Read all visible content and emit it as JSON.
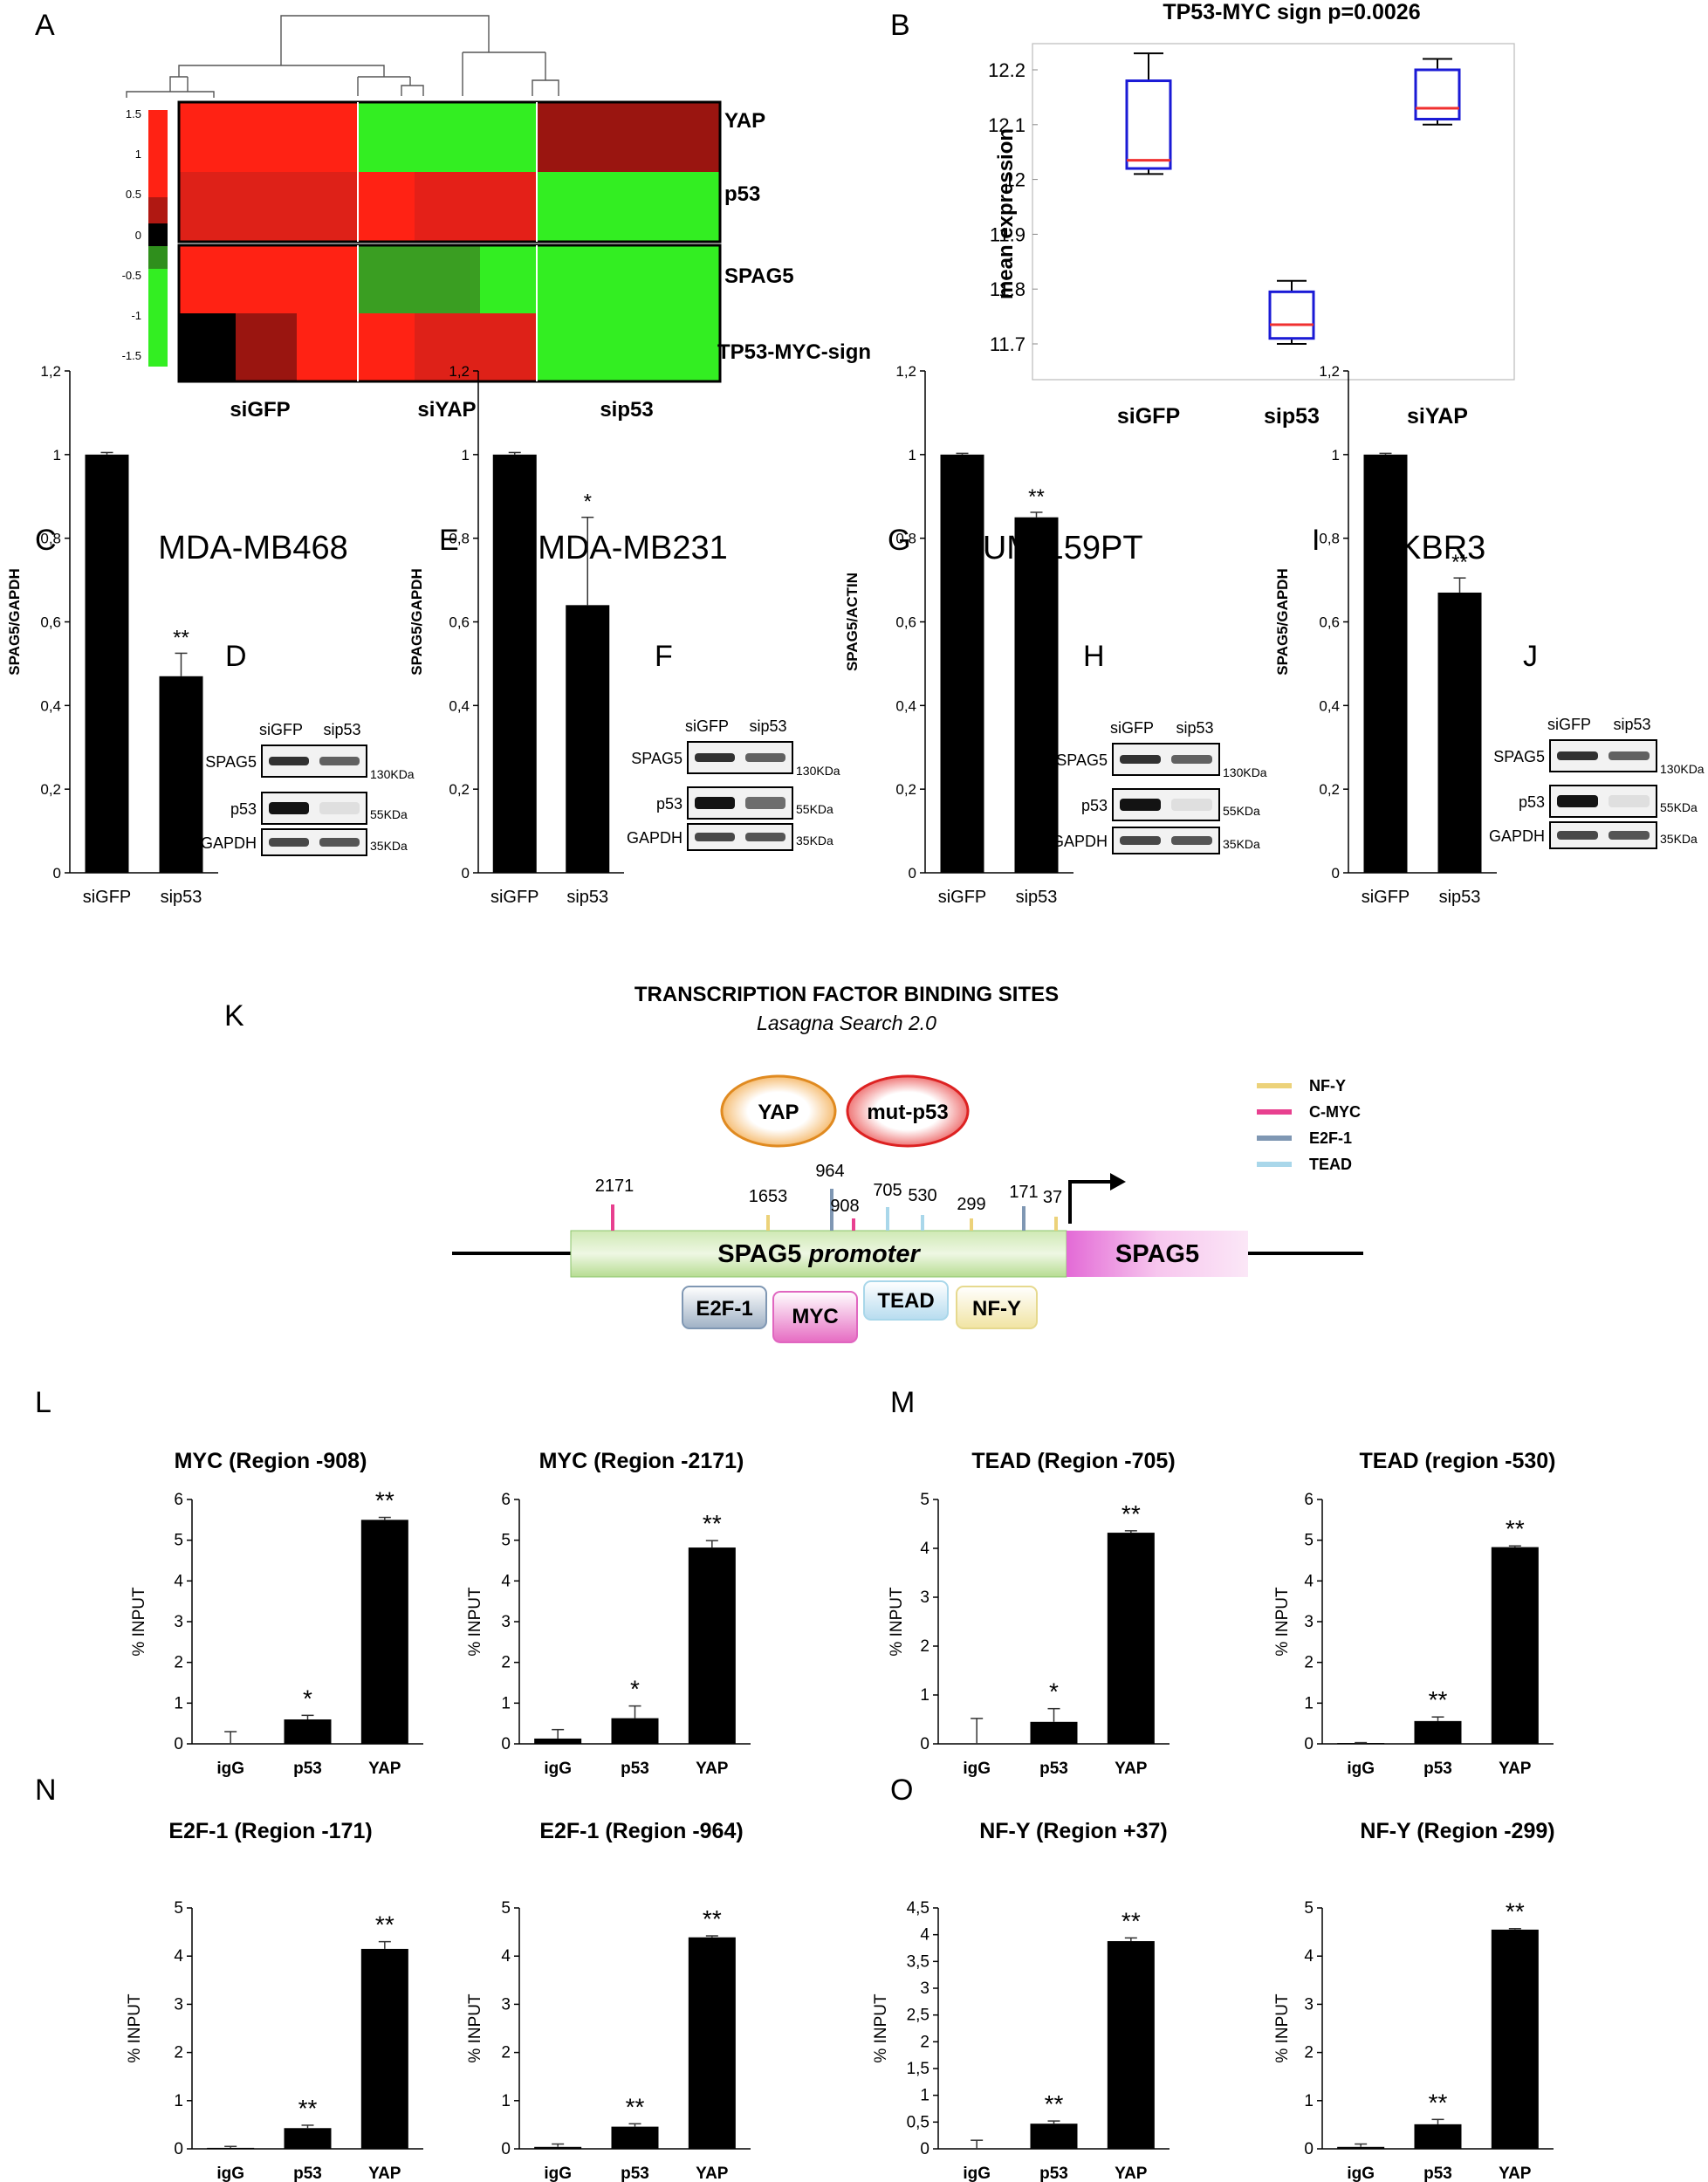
{
  "panel_letters": {
    "A": "A",
    "B": "B",
    "C": "C",
    "D": "D",
    "E": "E",
    "F": "F",
    "G": "G",
    "H": "H",
    "I": "I",
    "J": "J",
    "K": "K",
    "L": "L",
    "M": "M",
    "N": "N",
    "O": "O"
  },
  "heatmap": {
    "scale_ticks": [
      "1.5",
      "1",
      "0.5",
      "0",
      "-0.5",
      "-1",
      "-1.5"
    ],
    "rows": [
      "YAP",
      "p53",
      "SPAG5",
      "TP53-MYC-sign"
    ],
    "columns": [
      "siGFP",
      "siYAP",
      "sip53"
    ],
    "colors": {
      "red": "#ff2214",
      "darkred": "#9a1510",
      "midred": "#de2118",
      "green": "#33ee22",
      "darkgreen": "#3a9e22",
      "black": "#000000"
    }
  },
  "blots": [
    {
      "lanes": [
        "siGFP",
        "sip53"
      ],
      "rows": [
        "SPAG5",
        "p53",
        "GAPDH"
      ],
      "markers": [
        "130KDa",
        "55KDa",
        "35KDa"
      ]
    },
    {
      "lanes": [
        "siGFP",
        "sip53"
      ],
      "rows": [
        "SPAG5",
        "p53",
        "GAPDH"
      ],
      "markers": [
        "130KDa",
        "55KDa",
        "35KDa"
      ]
    },
    {
      "lanes": [
        "siGFP",
        "sip53"
      ],
      "rows": [
        "SPAG5",
        "p53",
        "GAPDH"
      ],
      "markers": [
        "130KDa",
        "55KDa",
        "35KDa"
      ]
    },
    {
      "lanes": [
        "siGFP",
        "sip53"
      ],
      "rows": [
        "SPAG5",
        "p53",
        "GAPDH"
      ],
      "markers": [
        "130KDa",
        "55KDa",
        "35KDa"
      ]
    }
  ],
  "promoter": {
    "title": "TRANSCRIPTION FACTOR BINDING SITES",
    "subtitle": "Lasagna Search 2.0",
    "factors": [
      "YAP",
      "mut-p53"
    ],
    "legend": [
      {
        "label": "NF-Y",
        "color": "#ecd27a"
      },
      {
        "label": "C-MYC",
        "color": "#e8408f"
      },
      {
        "label": "E2F-1",
        "color": "#7f97b3"
      },
      {
        "label": "TEAD",
        "color": "#a9d7ea"
      }
    ],
    "sites": [
      "2171",
      "1653",
      "964",
      "908",
      "705",
      "530",
      "299",
      "171",
      "37"
    ],
    "promoter_label": "SPAG5",
    "promoter_label_italic": "promoter",
    "gene_label": "SPAG5",
    "tf_boxes": [
      "E2F-1",
      "MYC",
      "TEAD",
      "NF-Y"
    ]
  },
  "chart_data": [
    {
      "id": "B",
      "type": "box",
      "title": "TP53-MYC sign p=0.0026",
      "ylabel": "mean expression",
      "ylim": [
        11.65,
        12.25
      ],
      "yticks": [
        11.7,
        11.8,
        11.9,
        12,
        12.1,
        12.2
      ],
      "categories": [
        "siGFP",
        "sip53",
        "siYAP"
      ],
      "boxes": [
        {
          "min": 12.01,
          "q1": 12.02,
          "median": 12.035,
          "q3": 12.18,
          "max": 12.23
        },
        {
          "min": 11.7,
          "q1": 11.71,
          "median": 11.735,
          "q3": 11.795,
          "max": 11.815
        },
        {
          "min": 12.1,
          "q1": 12.11,
          "median": 12.13,
          "q3": 12.2,
          "max": 12.22
        }
      ]
    },
    {
      "id": "C",
      "type": "bar",
      "title": "MDA-MB468",
      "ylabel": "SPAG5/GAPDH",
      "ylim": [
        0,
        1.2
      ],
      "yticks": [
        "0",
        "0,2",
        "0,4",
        "0,6",
        "0,8",
        "1",
        "1,2"
      ],
      "categories": [
        "siGFP",
        "sip53"
      ],
      "values": [
        1,
        0.47
      ],
      "errors": [
        0.005,
        0.055
      ],
      "sig": [
        "",
        "**"
      ]
    },
    {
      "id": "E",
      "type": "bar",
      "title": "MDA-MB231",
      "ylabel": "SPAG5/GAPDH",
      "ylim": [
        0,
        1.2
      ],
      "yticks": [
        "0",
        "0,2",
        "0,4",
        "0,6",
        "0,8",
        "1",
        "1,2"
      ],
      "categories": [
        "siGFP",
        "sip53"
      ],
      "values": [
        1,
        0.64
      ],
      "errors": [
        0.005,
        0.21
      ],
      "sig": [
        "",
        "*"
      ]
    },
    {
      "id": "G",
      "type": "bar",
      "title": "SUM-159PT",
      "ylabel": "SPAG5/ACTIN",
      "ylim": [
        0,
        1.2
      ],
      "yticks": [
        "0",
        "0,2",
        "0,4",
        "0,6",
        "0,8",
        "1",
        "1,2"
      ],
      "categories": [
        "siGFP",
        "sip53"
      ],
      "values": [
        1,
        0.85
      ],
      "errors": [
        0.003,
        0.012
      ],
      "sig": [
        "",
        "**"
      ]
    },
    {
      "id": "I",
      "type": "bar",
      "title": "SKBR3",
      "ylabel": "SPAG5/GAPDH",
      "ylim": [
        0,
        1.2
      ],
      "yticks": [
        "0",
        "0,2",
        "0,4",
        "0,6",
        "0,8",
        "1",
        "1,2"
      ],
      "categories": [
        "siGFP",
        "sip53"
      ],
      "values": [
        1,
        0.67
      ],
      "errors": [
        0.003,
        0.035
      ],
      "sig": [
        "",
        "**"
      ]
    },
    {
      "id": "L1",
      "type": "bar",
      "title": "MYC (Region -908)",
      "ylabel": "% INPUT",
      "ylim": [
        0,
        6
      ],
      "yticks": [
        "0",
        "1",
        "2",
        "3",
        "4",
        "5",
        "6"
      ],
      "categories": [
        "igG",
        "p53",
        "YAP"
      ],
      "values": [
        0,
        0.6,
        5.5
      ],
      "errors": [
        0.3,
        0.1,
        0.06
      ],
      "sig": [
        "",
        "*",
        "**"
      ]
    },
    {
      "id": "L2",
      "type": "bar",
      "title": "MYC (Region -2171)",
      "ylabel": "% INPUT",
      "ylim": [
        0,
        6
      ],
      "yticks": [
        "0",
        "1",
        "2",
        "3",
        "4",
        "5",
        "6"
      ],
      "categories": [
        "igG",
        "p53",
        "YAP"
      ],
      "values": [
        0.13,
        0.63,
        4.82
      ],
      "errors": [
        0.22,
        0.3,
        0.17
      ],
      "sig": [
        "",
        "*",
        "**"
      ]
    },
    {
      "id": "M1",
      "type": "bar",
      "title": "TEAD (Region -705)",
      "ylabel": "% INPUT",
      "ylim": [
        0,
        5
      ],
      "yticks": [
        "0",
        "1",
        "2",
        "3",
        "4",
        "5"
      ],
      "categories": [
        "igG",
        "p53",
        "YAP"
      ],
      "values": [
        0,
        0.45,
        4.32
      ],
      "errors": [
        0.52,
        0.27,
        0.04
      ],
      "sig": [
        "",
        "*",
        "**"
      ]
    },
    {
      "id": "M2",
      "type": "bar",
      "title": "TEAD (region -530)",
      "ylabel": "% INPUT",
      "ylim": [
        0,
        6
      ],
      "yticks": [
        "0",
        "1",
        "2",
        "3",
        "4",
        "5",
        "6"
      ],
      "categories": [
        "igG",
        "p53",
        "YAP"
      ],
      "values": [
        0.02,
        0.56,
        4.83
      ],
      "errors": [
        0.01,
        0.1,
        0.03
      ],
      "sig": [
        "",
        "**",
        "**"
      ]
    },
    {
      "id": "N1",
      "type": "bar",
      "title": "E2F-1 (Region -171)",
      "ylabel": "% INPUT",
      "ylim": [
        0,
        5
      ],
      "yticks": [
        "0",
        "1",
        "2",
        "3",
        "4",
        "5"
      ],
      "categories": [
        "igG",
        "p53",
        "YAP"
      ],
      "values": [
        0.02,
        0.43,
        4.15
      ],
      "errors": [
        0.03,
        0.06,
        0.15
      ],
      "sig": [
        "",
        "**",
        "**"
      ]
    },
    {
      "id": "N2",
      "type": "bar",
      "title": "E2F-1 (Region -964)",
      "ylabel": "% INPUT",
      "ylim": [
        0,
        5
      ],
      "yticks": [
        "0",
        "1",
        "2",
        "3",
        "4",
        "5"
      ],
      "categories": [
        "igG",
        "p53",
        "YAP"
      ],
      "values": [
        0.04,
        0.46,
        4.39
      ],
      "errors": [
        0.06,
        0.06,
        0.03
      ],
      "sig": [
        "",
        "**",
        "**"
      ]
    },
    {
      "id": "O1",
      "type": "bar",
      "title": "NF-Y (Region +37)",
      "ylabel": "% INPUT",
      "ylim": [
        0,
        4.5
      ],
      "yticks": [
        "0",
        "0,5",
        "1",
        "1,5",
        "2",
        "2,5",
        "3",
        "3,5",
        "4",
        "4,5"
      ],
      "categories": [
        "igG",
        "p53",
        "YAP"
      ],
      "values": [
        0,
        0.47,
        3.88
      ],
      "errors": [
        0.16,
        0.05,
        0.06
      ],
      "sig": [
        "",
        "**",
        "**"
      ]
    },
    {
      "id": "O2",
      "type": "bar",
      "title": "NF-Y (Region -299)",
      "ylabel": "% INPUT",
      "ylim": [
        0,
        5
      ],
      "yticks": [
        "0",
        "1",
        "2",
        "3",
        "4",
        "5"
      ],
      "categories": [
        "igG",
        "p53",
        "YAP"
      ],
      "values": [
        0.04,
        0.51,
        4.55
      ],
      "errors": [
        0.06,
        0.1,
        0.02
      ],
      "sig": [
        "",
        "**",
        "**"
      ]
    }
  ]
}
